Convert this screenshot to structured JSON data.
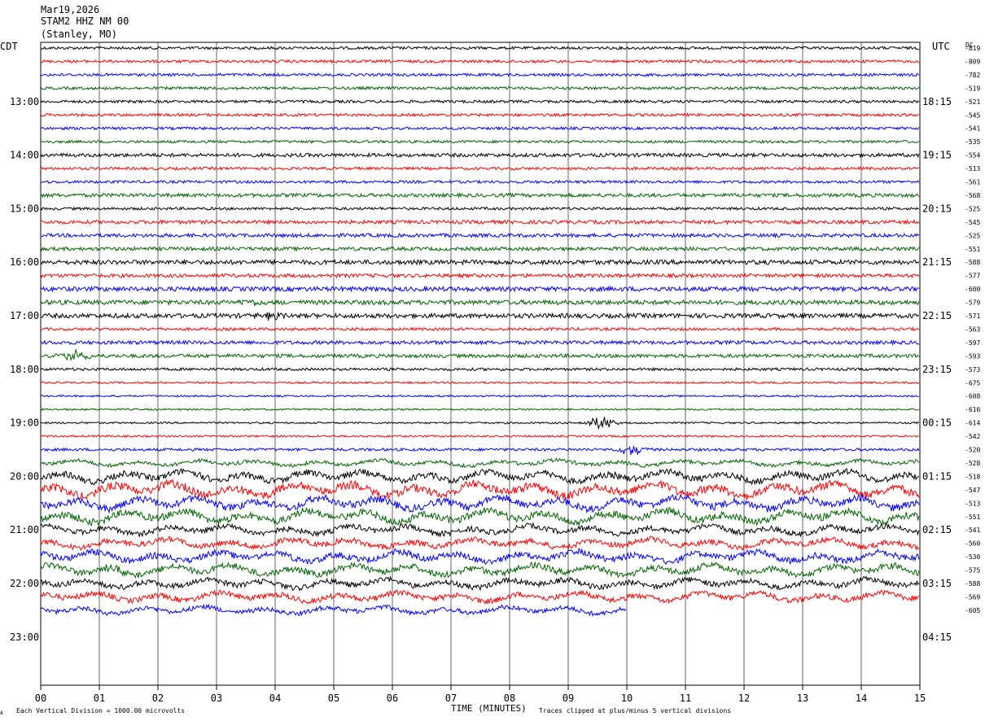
{
  "header": {
    "date": "Mar19,2026",
    "station": "STAM2 HHZ NM 00",
    "location": "(Stanley, MO)"
  },
  "left_axis_label": "CDT",
  "right_axis_label": "UTC",
  "dc_label": "DC",
  "footer": {
    "scale_note": "Each Vertical Division = 1000.00 microvolts",
    "xlabel": "TIME (MINUTES)",
    "clip_note": "Traces clipped at plus/minus 5 vertical divisions",
    "corner_mark": "A"
  },
  "chart_data": {
    "type": "line",
    "title": "",
    "xlabel": "TIME (MINUTES)",
    "xlim": [
      0,
      15
    ],
    "x_ticks": [
      "00",
      "01",
      "02",
      "03",
      "04",
      "05",
      "06",
      "07",
      "08",
      "09",
      "10",
      "11",
      "12",
      "13",
      "14",
      "15"
    ],
    "grid": "vertical lines every minute",
    "colors": [
      "#000000",
      "#ff0000",
      "#0000ff",
      "#006400"
    ],
    "left_hour_labels": [
      {
        "row": 4,
        "label": "13:00"
      },
      {
        "row": 8,
        "label": "14:00"
      },
      {
        "row": 12,
        "label": "15:00"
      },
      {
        "row": 16,
        "label": "16:00"
      },
      {
        "row": 20,
        "label": "17:00"
      },
      {
        "row": 24,
        "label": "18:00"
      },
      {
        "row": 28,
        "label": "19:00"
      },
      {
        "row": 32,
        "label": "20:00"
      },
      {
        "row": 36,
        "label": "21:00"
      },
      {
        "row": 40,
        "label": "22:00"
      },
      {
        "row": 44,
        "label": "23:00"
      }
    ],
    "right_hour_labels": [
      {
        "row": 4,
        "label": "18:15"
      },
      {
        "row": 8,
        "label": "19:15"
      },
      {
        "row": 12,
        "label": "20:15"
      },
      {
        "row": 16,
        "label": "21:15"
      },
      {
        "row": 20,
        "label": "22:15"
      },
      {
        "row": 24,
        "label": "23:15"
      },
      {
        "row": 28,
        "label": "00:15"
      },
      {
        "row": 32,
        "label": "01:15"
      },
      {
        "row": 36,
        "label": "02:15"
      },
      {
        "row": 40,
        "label": "03:15"
      },
      {
        "row": 44,
        "label": "04:15"
      }
    ],
    "dc_offsets": [
      "-819",
      "-809",
      "-782",
      "-519",
      "-521",
      "-545",
      "-541",
      "-535",
      "-554",
      "-513",
      "-561",
      "-568",
      "-525",
      "-545",
      "-525",
      "-551",
      "-588",
      "-577",
      "-600",
      "-579",
      "-571",
      "-563",
      "-597",
      "-593",
      "-573",
      "-675",
      "-608",
      "-616",
      "-614",
      "-542",
      "-520",
      "-528",
      "-518",
      "-547",
      "-513",
      "-551",
      "-541",
      "-560",
      "-530",
      "-575",
      "-588",
      "-569",
      "-605"
    ],
    "trace_amplitude": [
      3,
      3,
      3,
      3,
      3,
      3,
      3,
      3,
      4,
      3,
      3,
      4,
      3,
      4,
      4,
      4,
      5,
      4,
      5,
      5,
      5,
      3,
      4,
      4,
      3,
      2,
      2,
      2,
      2,
      2,
      3,
      4,
      7,
      9,
      8,
      8,
      6,
      6,
      7,
      7,
      6,
      6,
      5
    ],
    "trace_event_minutes": [
      {
        "row": 19,
        "at": 3.6,
        "peak": 4
      },
      {
        "row": 20,
        "at": 3.9,
        "peak": 5
      },
      {
        "row": 23,
        "at": 0.6,
        "peak": 9
      },
      {
        "row": 28,
        "at": 9.55,
        "peak": 10
      },
      {
        "row": 30,
        "at": 10.1,
        "peak": 8
      },
      {
        "row": 39,
        "at": 1.4,
        "peak": 8
      }
    ],
    "last_trace_end_minute": 10
  }
}
